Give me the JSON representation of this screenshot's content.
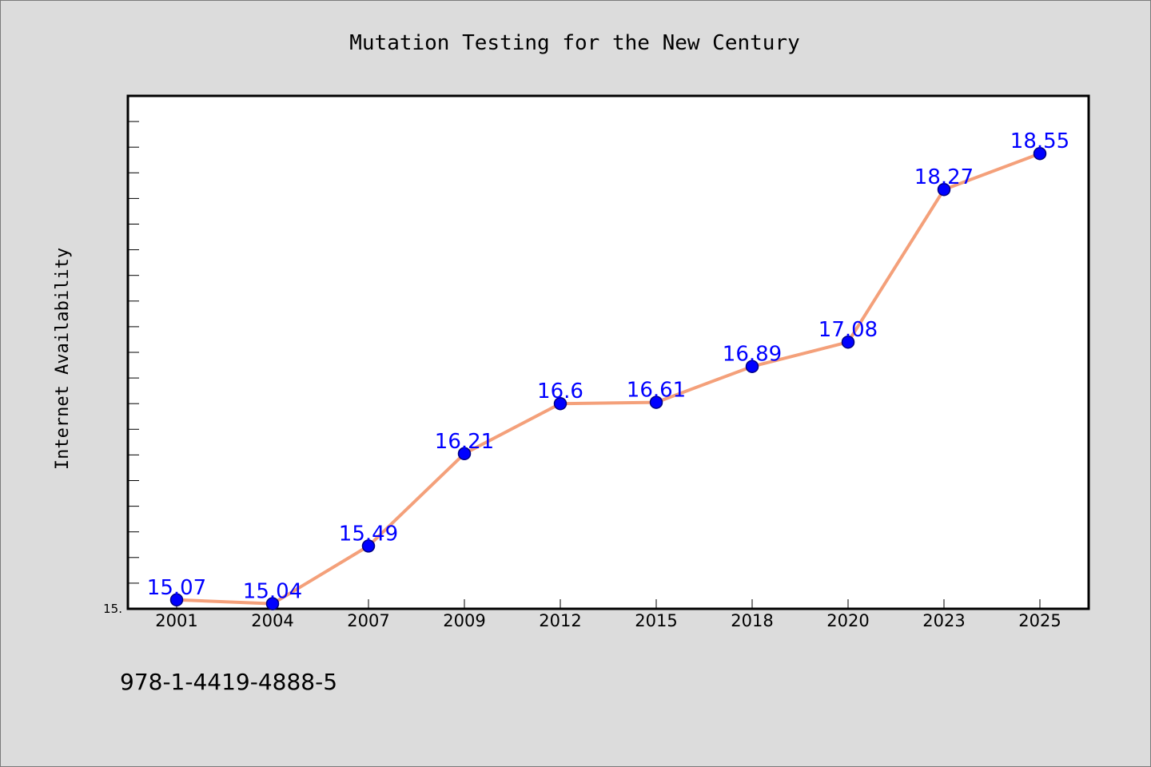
{
  "chart_data": {
    "type": "line",
    "title": "Mutation Testing for the New Century",
    "xlabel": "",
    "ylabel": "Internet Availability",
    "categories": [
      "2001",
      "2004",
      "2007",
      "2009",
      "2012",
      "2015",
      "2018",
      "2020",
      "2023",
      "2025"
    ],
    "series": [
      {
        "values": [
          15.07,
          15.04,
          15.49,
          16.21,
          16.6,
          16.61,
          16.89,
          17.08,
          18.27,
          18.55
        ],
        "data_labels": [
          "15.07",
          "15.04",
          "15.49",
          "16.21",
          "16.6",
          "16.61",
          "16.89",
          "17.08",
          "18.27",
          "18.55"
        ]
      }
    ],
    "ylim": [
      15.0,
      19.0
    ],
    "y_tick_labels": [
      "15."
    ],
    "grid": false,
    "legend": "none",
    "colors": {
      "line": "#f4a07a",
      "marker": "#0000ff",
      "marker_edge": "#000080",
      "data_label": "#0000ff",
      "plot_background": "#ffffff",
      "figure_background": "#dcdcdc"
    }
  },
  "footer": {
    "isbn": "978-1-4419-4888-5"
  }
}
